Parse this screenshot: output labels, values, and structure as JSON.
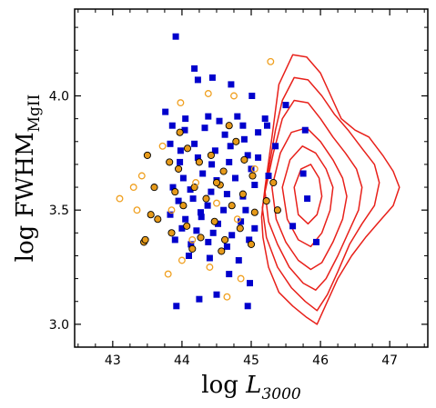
{
  "chart_data": {
    "type": "scatter",
    "title": "",
    "xlabel": {
      "main": "log ",
      "italic": "L",
      "sub": "3000"
    },
    "ylabel": {
      "main": "log FWHM",
      "sub": "MgII"
    },
    "xlim": [
      42.45,
      47.55
    ],
    "ylim": [
      2.9,
      4.38
    ],
    "x_ticks": [
      43,
      44,
      45,
      46,
      47
    ],
    "x_tick_labels": [
      "43",
      "44",
      "45",
      "46",
      "47"
    ],
    "y_ticks": [
      3.0,
      3.5,
      4.0
    ],
    "y_tick_labels": [
      "3.0",
      "3.5",
      "4.0"
    ],
    "grid": false,
    "colors": {
      "blue_square": "#0000cc",
      "orange_filled": "#e69a1a",
      "orange_open": "#f0a020",
      "contour": "#e8201a"
    },
    "series": [
      {
        "marker": "square-filled",
        "color": "#0000cc",
        "points": [
          [
            43.91,
            4.26
          ],
          [
            44.18,
            4.12
          ],
          [
            44.23,
            4.07
          ],
          [
            44.44,
            4.08
          ],
          [
            44.71,
            4.05
          ],
          [
            44.8,
            3.91
          ],
          [
            45.01,
            4.0
          ],
          [
            43.76,
            3.93
          ],
          [
            43.86,
            3.87
          ],
          [
            44.05,
            3.9
          ],
          [
            44.38,
            3.91
          ],
          [
            44.54,
            3.89
          ],
          [
            44.88,
            3.87
          ],
          [
            45.23,
            3.87
          ],
          [
            44.04,
            3.85
          ],
          [
            44.33,
            3.86
          ],
          [
            44.62,
            3.83
          ],
          [
            44.9,
            3.81
          ],
          [
            45.1,
            3.84
          ],
          [
            43.83,
            3.79
          ],
          [
            43.98,
            3.76
          ],
          [
            44.18,
            3.79
          ],
          [
            44.48,
            3.76
          ],
          [
            44.7,
            3.78
          ],
          [
            44.95,
            3.74
          ],
          [
            43.97,
            3.71
          ],
          [
            44.23,
            3.73
          ],
          [
            44.43,
            3.7
          ],
          [
            44.68,
            3.71
          ],
          [
            45.0,
            3.68
          ],
          [
            44.02,
            3.64
          ],
          [
            44.3,
            3.66
          ],
          [
            44.5,
            3.63
          ],
          [
            44.77,
            3.64
          ],
          [
            45.05,
            3.61
          ],
          [
            43.87,
            3.6
          ],
          [
            44.12,
            3.59
          ],
          [
            44.42,
            3.58
          ],
          [
            44.65,
            3.57
          ],
          [
            44.88,
            3.56
          ],
          [
            43.95,
            3.54
          ],
          [
            44.16,
            3.55
          ],
          [
            44.37,
            3.52
          ],
          [
            44.6,
            3.5
          ],
          [
            44.92,
            3.5
          ],
          [
            43.83,
            3.48
          ],
          [
            44.05,
            3.46
          ],
          [
            44.28,
            3.47
          ],
          [
            44.52,
            3.44
          ],
          [
            44.85,
            3.45
          ],
          [
            44.0,
            3.42
          ],
          [
            44.21,
            3.41
          ],
          [
            44.45,
            3.4
          ],
          [
            44.72,
            3.39
          ],
          [
            45.05,
            3.42
          ],
          [
            43.9,
            3.37
          ],
          [
            44.13,
            3.35
          ],
          [
            44.38,
            3.36
          ],
          [
            44.65,
            3.34
          ],
          [
            44.97,
            3.37
          ],
          [
            44.1,
            3.3
          ],
          [
            44.4,
            3.29
          ],
          [
            44.82,
            3.28
          ],
          [
            44.68,
            3.22
          ],
          [
            44.98,
            3.18
          ],
          [
            44.5,
            3.13
          ],
          [
            44.25,
            3.11
          ],
          [
            44.95,
            3.08
          ],
          [
            43.92,
            3.08
          ],
          [
            45.2,
            3.9
          ],
          [
            45.5,
            3.96
          ],
          [
            45.1,
            3.73
          ],
          [
            45.35,
            3.78
          ],
          [
            45.25,
            3.65
          ],
          [
            45.75,
            3.66
          ],
          [
            45.81,
            3.55
          ],
          [
            45.94,
            3.36
          ],
          [
            45.6,
            3.43
          ],
          [
            45.78,
            3.85
          ],
          [
            44.27,
            3.49
          ]
        ]
      },
      {
        "marker": "circle-filled",
        "color": "#e69a1a",
        "points": [
          [
            43.5,
            3.74
          ],
          [
            43.6,
            3.6
          ],
          [
            43.55,
            3.48
          ],
          [
            43.65,
            3.46
          ],
          [
            43.45,
            3.36
          ],
          [
            43.47,
            3.37
          ],
          [
            43.82,
            3.71
          ],
          [
            43.95,
            3.68
          ],
          [
            44.08,
            3.77
          ],
          [
            44.25,
            3.71
          ],
          [
            44.42,
            3.74
          ],
          [
            44.6,
            3.67
          ],
          [
            44.78,
            3.8
          ],
          [
            44.9,
            3.72
          ],
          [
            45.02,
            3.65
          ],
          [
            43.9,
            3.58
          ],
          [
            44.02,
            3.52
          ],
          [
            44.18,
            3.6
          ],
          [
            44.35,
            3.55
          ],
          [
            44.55,
            3.61
          ],
          [
            44.72,
            3.52
          ],
          [
            44.88,
            3.57
          ],
          [
            45.05,
            3.49
          ],
          [
            43.85,
            3.4
          ],
          [
            44.07,
            3.43
          ],
          [
            44.27,
            3.38
          ],
          [
            44.47,
            3.45
          ],
          [
            44.62,
            3.37
          ],
          [
            44.84,
            3.42
          ],
          [
            45.0,
            3.35
          ],
          [
            44.15,
            3.33
          ],
          [
            44.57,
            3.32
          ],
          [
            45.32,
            3.62
          ],
          [
            45.22,
            3.54
          ],
          [
            45.38,
            3.5
          ],
          [
            44.68,
            3.87
          ],
          [
            43.97,
            3.84
          ],
          [
            44.5,
            3.62
          ]
        ]
      },
      {
        "marker": "circle-open",
        "color": "#f0a020",
        "points": [
          [
            43.1,
            3.55
          ],
          [
            43.3,
            3.6
          ],
          [
            43.42,
            3.65
          ],
          [
            43.35,
            3.5
          ],
          [
            43.8,
            3.22
          ],
          [
            44.0,
            3.28
          ],
          [
            44.15,
            3.37
          ],
          [
            44.4,
            3.25
          ],
          [
            44.85,
            3.2
          ],
          [
            44.65,
            3.12
          ],
          [
            45.28,
            4.15
          ],
          [
            44.38,
            4.01
          ],
          [
            44.75,
            4.0
          ],
          [
            43.98,
            3.97
          ],
          [
            45.05,
            3.68
          ],
          [
            43.72,
            3.78
          ],
          [
            44.2,
            3.62
          ],
          [
            44.8,
            3.46
          ],
          [
            43.85,
            3.5
          ],
          [
            44.5,
            3.53
          ]
        ]
      }
    ],
    "contours": [
      [
        [
          45.15,
          3.47
        ],
        [
          45.2,
          3.6
        ],
        [
          45.3,
          3.82
        ],
        [
          45.4,
          4.05
        ],
        [
          45.6,
          4.18
        ],
        [
          45.8,
          4.17
        ],
        [
          46.0,
          4.1
        ],
        [
          46.15,
          4.0
        ],
        [
          46.3,
          3.9
        ],
        [
          46.5,
          3.85
        ],
        [
          46.7,
          3.82
        ],
        [
          46.9,
          3.74
        ],
        [
          47.05,
          3.67
        ],
        [
          47.14,
          3.6
        ],
        [
          47.05,
          3.52
        ],
        [
          46.85,
          3.45
        ],
        [
          46.65,
          3.38
        ],
        [
          46.45,
          3.3
        ],
        [
          46.25,
          3.2
        ],
        [
          46.1,
          3.1
        ],
        [
          45.95,
          3.0
        ],
        [
          45.8,
          3.03
        ],
        [
          45.6,
          3.08
        ],
        [
          45.4,
          3.14
        ],
        [
          45.25,
          3.25
        ],
        [
          45.17,
          3.38
        ],
        [
          45.15,
          3.47
        ]
      ],
      [
        [
          45.16,
          3.51
        ],
        [
          45.24,
          3.66
        ],
        [
          45.35,
          3.85
        ],
        [
          45.45,
          3.98
        ],
        [
          45.62,
          4.08
        ],
        [
          45.82,
          4.07
        ],
        [
          46.02,
          4.0
        ],
        [
          46.2,
          3.92
        ],
        [
          46.4,
          3.85
        ],
        [
          46.6,
          3.77
        ],
        [
          46.78,
          3.7
        ],
        [
          46.85,
          3.62
        ],
        [
          46.78,
          3.52
        ],
        [
          46.6,
          3.44
        ],
        [
          46.42,
          3.35
        ],
        [
          46.25,
          3.23
        ],
        [
          46.1,
          3.13
        ],
        [
          45.95,
          3.06
        ],
        [
          45.78,
          3.1
        ],
        [
          45.58,
          3.16
        ],
        [
          45.38,
          3.25
        ],
        [
          45.22,
          3.38
        ],
        [
          45.16,
          3.51
        ]
      ],
      [
        [
          45.2,
          3.58
        ],
        [
          45.32,
          3.75
        ],
        [
          45.45,
          3.9
        ],
        [
          45.62,
          3.98
        ],
        [
          45.82,
          3.97
        ],
        [
          46.0,
          3.9
        ],
        [
          46.18,
          3.82
        ],
        [
          46.36,
          3.75
        ],
        [
          46.52,
          3.68
        ],
        [
          46.6,
          3.6
        ],
        [
          46.55,
          3.5
        ],
        [
          46.4,
          3.4
        ],
        [
          46.25,
          3.3
        ],
        [
          46.08,
          3.2
        ],
        [
          45.93,
          3.15
        ],
        [
          45.75,
          3.18
        ],
        [
          45.55,
          3.25
        ],
        [
          45.38,
          3.35
        ],
        [
          45.25,
          3.45
        ],
        [
          45.2,
          3.58
        ]
      ],
      [
        [
          45.3,
          3.6
        ],
        [
          45.42,
          3.75
        ],
        [
          45.58,
          3.84
        ],
        [
          45.8,
          3.86
        ],
        [
          46.0,
          3.8
        ],
        [
          46.18,
          3.72
        ],
        [
          46.32,
          3.64
        ],
        [
          46.38,
          3.56
        ],
        [
          46.32,
          3.46
        ],
        [
          46.18,
          3.36
        ],
        [
          46.02,
          3.27
        ],
        [
          45.86,
          3.24
        ],
        [
          45.68,
          3.28
        ],
        [
          45.5,
          3.36
        ],
        [
          45.36,
          3.46
        ],
        [
          45.3,
          3.6
        ]
      ],
      [
        [
          45.45,
          3.6
        ],
        [
          45.56,
          3.72
        ],
        [
          45.74,
          3.78
        ],
        [
          45.93,
          3.75
        ],
        [
          46.08,
          3.68
        ],
        [
          46.18,
          3.6
        ],
        [
          46.14,
          3.5
        ],
        [
          46.02,
          3.4
        ],
        [
          45.86,
          3.34
        ],
        [
          45.68,
          3.37
        ],
        [
          45.52,
          3.46
        ],
        [
          45.45,
          3.6
        ]
      ],
      [
        [
          45.62,
          3.6
        ],
        [
          45.72,
          3.68
        ],
        [
          45.86,
          3.7
        ],
        [
          45.98,
          3.64
        ],
        [
          46.02,
          3.56
        ],
        [
          45.95,
          3.48
        ],
        [
          45.82,
          3.44
        ],
        [
          45.68,
          3.48
        ],
        [
          45.62,
          3.6
        ]
      ]
    ]
  }
}
